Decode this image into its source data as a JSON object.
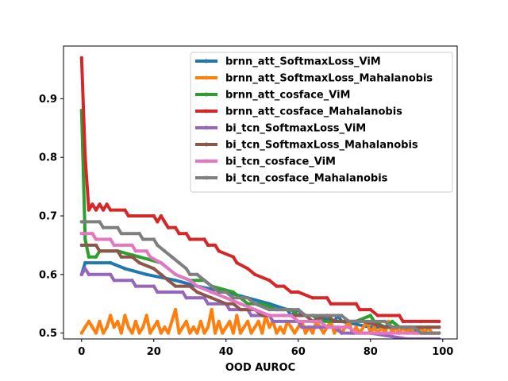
{
  "chart_data": {
    "type": "line",
    "xlabel": "OOD AUROC",
    "ylabel": "",
    "title": "",
    "xlim": [
      -5,
      104
    ],
    "ylim": [
      0.49,
      0.99
    ],
    "xticks": [
      0,
      20,
      40,
      60,
      80,
      100
    ],
    "yticks": [
      0.5,
      0.6,
      0.7,
      0.8,
      0.9
    ],
    "ytick_labels": [
      "0.5",
      "0.6",
      "0.7",
      "0.8",
      "0.9"
    ],
    "grid": false,
    "legend_position": "top-right",
    "series": [
      {
        "name": "brnn_att_SoftmaxLoss_ViM",
        "color": "#1f77b4",
        "points": [
          [
            0,
            0.6
          ],
          [
            1,
            0.62
          ],
          [
            8,
            0.62
          ],
          [
            12,
            0.61
          ],
          [
            18,
            0.6
          ],
          [
            26,
            0.59
          ],
          [
            32,
            0.58
          ],
          [
            40,
            0.57
          ],
          [
            46,
            0.56
          ],
          [
            52,
            0.55
          ],
          [
            57,
            0.54
          ],
          [
            58,
            0.53
          ],
          [
            60,
            0.54
          ],
          [
            61,
            0.53
          ],
          [
            64,
            0.53
          ],
          [
            70,
            0.52
          ],
          [
            71,
            0.53
          ],
          [
            72,
            0.52
          ],
          [
            80,
            0.51
          ],
          [
            88,
            0.51
          ],
          [
            94,
            0.5
          ],
          [
            99,
            0.5
          ]
        ]
      },
      {
        "name": "brnn_att_SoftmaxLoss_Mahalanobis",
        "color": "#ff7f0e",
        "points": [
          [
            0,
            0.5
          ],
          [
            1,
            0.51
          ],
          [
            2,
            0.52
          ],
          [
            3,
            0.51
          ],
          [
            4,
            0.5
          ],
          [
            5,
            0.52
          ],
          [
            6,
            0.5
          ],
          [
            7,
            0.51
          ],
          [
            8,
            0.53
          ],
          [
            9,
            0.51
          ],
          [
            10,
            0.52
          ],
          [
            11,
            0.5
          ],
          [
            12,
            0.53
          ],
          [
            13,
            0.51
          ],
          [
            14,
            0.5
          ],
          [
            15,
            0.52
          ],
          [
            16,
            0.5
          ],
          [
            17,
            0.51
          ],
          [
            18,
            0.53
          ],
          [
            19,
            0.5
          ],
          [
            20,
            0.51
          ],
          [
            21,
            0.52
          ],
          [
            22,
            0.5
          ],
          [
            23,
            0.51
          ],
          [
            24,
            0.5
          ],
          [
            25,
            0.52
          ],
          [
            26,
            0.54
          ],
          [
            27,
            0.5
          ],
          [
            28,
            0.51
          ],
          [
            29,
            0.52
          ],
          [
            30,
            0.5
          ],
          [
            31,
            0.51
          ],
          [
            32,
            0.5
          ],
          [
            33,
            0.52
          ],
          [
            34,
            0.5
          ],
          [
            35,
            0.51
          ],
          [
            36,
            0.54
          ],
          [
            37,
            0.5
          ],
          [
            38,
            0.52
          ],
          [
            39,
            0.5
          ],
          [
            40,
            0.51
          ],
          [
            41,
            0.52
          ],
          [
            42,
            0.5
          ],
          [
            43,
            0.53
          ],
          [
            44,
            0.5
          ],
          [
            45,
            0.51
          ],
          [
            46,
            0.52
          ],
          [
            47,
            0.5
          ],
          [
            48,
            0.51
          ],
          [
            49,
            0.52
          ],
          [
            50,
            0.5
          ],
          [
            51,
            0.53
          ],
          [
            52,
            0.51
          ],
          [
            53,
            0.52
          ],
          [
            54,
            0.5
          ],
          [
            55,
            0.51
          ],
          [
            56,
            0.5
          ],
          [
            57,
            0.52
          ],
          [
            58,
            0.51
          ],
          [
            59,
            0.5
          ],
          [
            60,
            0.51
          ],
          [
            61,
            0.52
          ],
          [
            62,
            0.5
          ],
          [
            63,
            0.51
          ],
          [
            64,
            0.5
          ],
          [
            65,
            0.52
          ],
          [
            66,
            0.51
          ],
          [
            67,
            0.5
          ],
          [
            68,
            0.51
          ],
          [
            69,
            0.52
          ],
          [
            70,
            0.5
          ],
          [
            71,
            0.51
          ],
          [
            72,
            0.5
          ],
          [
            73,
            0.51
          ],
          [
            74,
            0.52
          ],
          [
            75,
            0.5
          ],
          [
            76,
            0.51
          ],
          [
            77,
            0.5
          ],
          [
            78,
            0.51
          ],
          [
            79,
            0.52
          ],
          [
            80,
            0.5
          ],
          [
            81,
            0.51
          ],
          [
            82,
            0.5
          ],
          [
            83,
            0.51
          ],
          [
            84,
            0.5
          ],
          [
            85,
            0.52
          ],
          [
            86,
            0.5
          ],
          [
            87,
            0.51
          ],
          [
            88,
            0.5
          ],
          [
            89,
            0.51
          ],
          [
            90,
            0.5
          ],
          [
            91,
            0.51
          ],
          [
            92,
            0.5
          ],
          [
            93,
            0.5
          ],
          [
            94,
            0.51
          ],
          [
            95,
            0.5
          ],
          [
            96,
            0.51
          ],
          [
            97,
            0.5
          ],
          [
            98,
            0.5
          ],
          [
            99,
            0.5
          ]
        ]
      },
      {
        "name": "brnn_att_cosface_ViM",
        "color": "#2ca02c",
        "points": [
          [
            0,
            0.88
          ],
          [
            1,
            0.66
          ],
          [
            2,
            0.63
          ],
          [
            4,
            0.63
          ],
          [
            5,
            0.64
          ],
          [
            10,
            0.64
          ],
          [
            16,
            0.63
          ],
          [
            22,
            0.62
          ],
          [
            26,
            0.6
          ],
          [
            30,
            0.59
          ],
          [
            34,
            0.59
          ],
          [
            36,
            0.58
          ],
          [
            42,
            0.57
          ],
          [
            44,
            0.56
          ],
          [
            46,
            0.55
          ],
          [
            50,
            0.55
          ],
          [
            54,
            0.54
          ],
          [
            58,
            0.54
          ],
          [
            60,
            0.53
          ],
          [
            64,
            0.53
          ],
          [
            66,
            0.52
          ],
          [
            72,
            0.52
          ],
          [
            76,
            0.52
          ],
          [
            80,
            0.53
          ],
          [
            81,
            0.52
          ],
          [
            84,
            0.51
          ],
          [
            86,
            0.52
          ],
          [
            88,
            0.51
          ],
          [
            92,
            0.51
          ],
          [
            96,
            0.51
          ],
          [
            99,
            0.51
          ]
        ]
      },
      {
        "name": "brnn_att_cosface_Mahalanobis",
        "color": "#d62728",
        "points": [
          [
            0,
            0.97
          ],
          [
            1,
            0.8
          ],
          [
            2,
            0.71
          ],
          [
            3,
            0.72
          ],
          [
            4,
            0.71
          ],
          [
            5,
            0.72
          ],
          [
            6,
            0.71
          ],
          [
            7,
            0.72
          ],
          [
            8,
            0.71
          ],
          [
            12,
            0.71
          ],
          [
            13,
            0.7
          ],
          [
            20,
            0.7
          ],
          [
            21,
            0.69
          ],
          [
            22,
            0.7
          ],
          [
            23,
            0.69
          ],
          [
            24,
            0.68
          ],
          [
            26,
            0.68
          ],
          [
            27,
            0.67
          ],
          [
            29,
            0.67
          ],
          [
            30,
            0.66
          ],
          [
            34,
            0.66
          ],
          [
            35,
            0.65
          ],
          [
            37,
            0.65
          ],
          [
            38,
            0.64
          ],
          [
            42,
            0.63
          ],
          [
            43,
            0.62
          ],
          [
            46,
            0.61
          ],
          [
            48,
            0.6
          ],
          [
            52,
            0.59
          ],
          [
            54,
            0.58
          ],
          [
            56,
            0.58
          ],
          [
            58,
            0.57
          ],
          [
            60,
            0.57
          ],
          [
            64,
            0.56
          ],
          [
            68,
            0.56
          ],
          [
            69,
            0.55
          ],
          [
            76,
            0.55
          ],
          [
            77,
            0.54
          ],
          [
            80,
            0.54
          ],
          [
            82,
            0.53
          ],
          [
            88,
            0.53
          ],
          [
            89,
            0.52
          ],
          [
            94,
            0.52
          ],
          [
            99,
            0.52
          ]
        ]
      },
      {
        "name": "bi_tcn_SoftmaxLoss_ViM",
        "color": "#9467bd",
        "points": [
          [
            0,
            0.6
          ],
          [
            1,
            0.61
          ],
          [
            2,
            0.6
          ],
          [
            8,
            0.6
          ],
          [
            9,
            0.59
          ],
          [
            14,
            0.59
          ],
          [
            15,
            0.58
          ],
          [
            20,
            0.58
          ],
          [
            21,
            0.57
          ],
          [
            28,
            0.57
          ],
          [
            29,
            0.56
          ],
          [
            34,
            0.56
          ],
          [
            35,
            0.55
          ],
          [
            40,
            0.55
          ],
          [
            41,
            0.54
          ],
          [
            46,
            0.54
          ],
          [
            47,
            0.53
          ],
          [
            52,
            0.53
          ],
          [
            53,
            0.52
          ],
          [
            60,
            0.52
          ],
          [
            61,
            0.51
          ],
          [
            70,
            0.51
          ],
          [
            72,
            0.5
          ],
          [
            80,
            0.5
          ],
          [
            90,
            0.49
          ],
          [
            99,
            0.49
          ]
        ]
      },
      {
        "name": "bi_tcn_SoftmaxLoss_Mahalanobis",
        "color": "#8c564b",
        "points": [
          [
            0,
            0.65
          ],
          [
            4,
            0.65
          ],
          [
            5,
            0.64
          ],
          [
            10,
            0.64
          ],
          [
            11,
            0.63
          ],
          [
            14,
            0.63
          ],
          [
            16,
            0.62
          ],
          [
            20,
            0.61
          ],
          [
            22,
            0.6
          ],
          [
            24,
            0.59
          ],
          [
            26,
            0.58
          ],
          [
            30,
            0.58
          ],
          [
            32,
            0.57
          ],
          [
            36,
            0.56
          ],
          [
            40,
            0.55
          ],
          [
            42,
            0.55
          ],
          [
            44,
            0.54
          ],
          [
            48,
            0.54
          ],
          [
            50,
            0.53
          ],
          [
            56,
            0.53
          ],
          [
            58,
            0.53
          ],
          [
            62,
            0.53
          ],
          [
            64,
            0.52
          ],
          [
            68,
            0.53
          ],
          [
            70,
            0.52
          ],
          [
            76,
            0.52
          ],
          [
            78,
            0.52
          ],
          [
            84,
            0.51
          ],
          [
            90,
            0.51
          ],
          [
            99,
            0.51
          ]
        ]
      },
      {
        "name": "bi_tcn_cosface_ViM",
        "color": "#e377c2",
        "points": [
          [
            0,
            0.67
          ],
          [
            3,
            0.67
          ],
          [
            4,
            0.66
          ],
          [
            8,
            0.66
          ],
          [
            9,
            0.65
          ],
          [
            14,
            0.65
          ],
          [
            15,
            0.64
          ],
          [
            18,
            0.64
          ],
          [
            19,
            0.63
          ],
          [
            22,
            0.62
          ],
          [
            24,
            0.61
          ],
          [
            26,
            0.6
          ],
          [
            30,
            0.59
          ],
          [
            32,
            0.58
          ],
          [
            36,
            0.57
          ],
          [
            40,
            0.56
          ],
          [
            44,
            0.55
          ],
          [
            48,
            0.54
          ],
          [
            52,
            0.53
          ],
          [
            58,
            0.53
          ],
          [
            60,
            0.52
          ],
          [
            66,
            0.52
          ],
          [
            68,
            0.51
          ],
          [
            74,
            0.51
          ],
          [
            76,
            0.5
          ],
          [
            99,
            0.5
          ]
        ]
      },
      {
        "name": "bi_tcn_cosface_Mahalanobis",
        "color": "#7f7f7f",
        "points": [
          [
            0,
            0.69
          ],
          [
            5,
            0.69
          ],
          [
            6,
            0.68
          ],
          [
            10,
            0.68
          ],
          [
            11,
            0.67
          ],
          [
            16,
            0.67
          ],
          [
            17,
            0.66
          ],
          [
            20,
            0.66
          ],
          [
            21,
            0.65
          ],
          [
            23,
            0.64
          ],
          [
            25,
            0.63
          ],
          [
            27,
            0.62
          ],
          [
            29,
            0.61
          ],
          [
            30,
            0.6
          ],
          [
            32,
            0.6
          ],
          [
            34,
            0.59
          ],
          [
            36,
            0.58
          ],
          [
            38,
            0.57
          ],
          [
            40,
            0.57
          ],
          [
            42,
            0.56
          ],
          [
            46,
            0.56
          ],
          [
            48,
            0.55
          ],
          [
            52,
            0.54
          ],
          [
            60,
            0.54
          ],
          [
            62,
            0.53
          ],
          [
            72,
            0.53
          ],
          [
            74,
            0.52
          ],
          [
            84,
            0.52
          ],
          [
            86,
            0.51
          ],
          [
            92,
            0.51
          ],
          [
            94,
            0.5
          ],
          [
            99,
            0.5
          ]
        ]
      }
    ]
  }
}
